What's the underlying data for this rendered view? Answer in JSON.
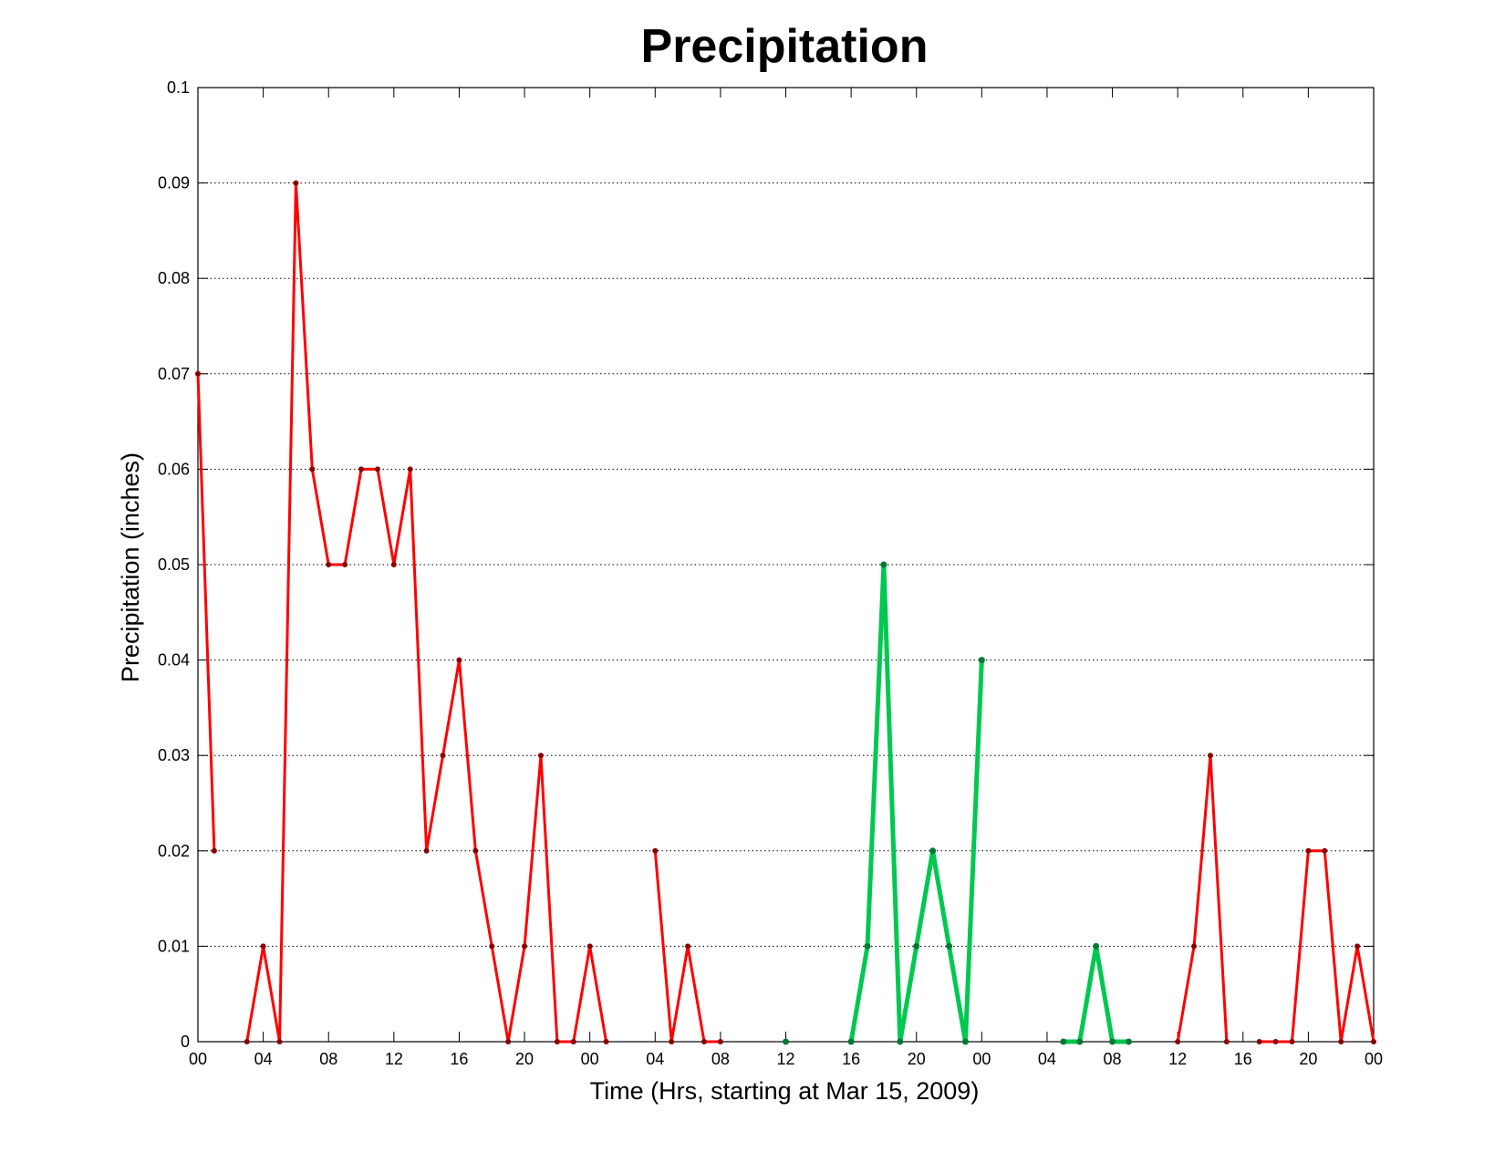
{
  "chart_data": {
    "type": "line",
    "title": "Precipitation",
    "xlabel": "Time (Hrs, starting at Mar 15, 2009)",
    "ylabel": "Precipitation (inches)",
    "xlim": [
      0,
      72
    ],
    "ylim": [
      0,
      0.1
    ],
    "grid": "y-dotted",
    "x_ticks": [
      0,
      4,
      8,
      12,
      16,
      20,
      24,
      28,
      32,
      36,
      40,
      44,
      48,
      52,
      56,
      60,
      64,
      68,
      72
    ],
    "x_tick_labels": [
      "00",
      "04",
      "08",
      "12",
      "16",
      "20",
      "00",
      "04",
      "08",
      "12",
      "16",
      "20",
      "00",
      "04",
      "08",
      "12",
      "16",
      "20",
      "00"
    ],
    "y_ticks": [
      0,
      0.01,
      0.02,
      0.03,
      0.04,
      0.05,
      0.06,
      0.07,
      0.08,
      0.09,
      0.1
    ],
    "y_tick_labels": [
      "0",
      "0.01",
      "0.02",
      "0.03",
      "0.04",
      "0.05",
      "0.06",
      "0.07",
      "0.08",
      "0.09",
      "0.1"
    ],
    "colors": {
      "red": "#ff0000",
      "red_marker": "#8b0000",
      "green": "#00c850",
      "green_marker": "#007a33"
    },
    "series": [
      {
        "color": "red",
        "thick": false,
        "x": [
          0,
          1
        ],
        "y": [
          0.07,
          0.02
        ]
      },
      {
        "color": "red",
        "thick": false,
        "x": [
          3,
          4,
          5,
          6,
          7,
          8,
          9,
          10,
          11,
          12,
          13,
          14,
          15,
          16,
          17,
          18,
          19,
          20,
          21,
          22,
          23,
          24,
          25
        ],
        "y": [
          0,
          0.01,
          0,
          0.09,
          0.06,
          0.05,
          0.05,
          0.06,
          0.06,
          0.05,
          0.06,
          0.02,
          0.03,
          0.04,
          0.02,
          0.01,
          0,
          0.01,
          0.03,
          0,
          0,
          0.01,
          0
        ]
      },
      {
        "color": "red",
        "thick": false,
        "x": [
          28,
          29,
          30,
          31,
          32
        ],
        "y": [
          0.02,
          0,
          0.01,
          0,
          0
        ]
      },
      {
        "color": "green",
        "thick": true,
        "x": [
          36
        ],
        "y": [
          0
        ]
      },
      {
        "color": "green",
        "thick": true,
        "x": [
          40,
          41,
          42,
          43,
          44,
          45,
          46,
          47,
          48
        ],
        "y": [
          0,
          0.01,
          0.05,
          0,
          0.01,
          0.02,
          0.01,
          0,
          0.04
        ]
      },
      {
        "color": "green",
        "thick": true,
        "x": [
          53,
          54,
          55,
          56,
          57
        ],
        "y": [
          0,
          0,
          0.01,
          0,
          0
        ]
      },
      {
        "color": "red",
        "thick": false,
        "x": [
          60,
          61,
          62,
          63
        ],
        "y": [
          0,
          0.01,
          0.03,
          0
        ]
      },
      {
        "color": "red",
        "thick": false,
        "x": [
          65,
          66,
          67,
          68,
          69,
          70,
          71,
          72
        ],
        "y": [
          0,
          0,
          0,
          0.02,
          0.02,
          0,
          0.01,
          0
        ]
      }
    ]
  }
}
